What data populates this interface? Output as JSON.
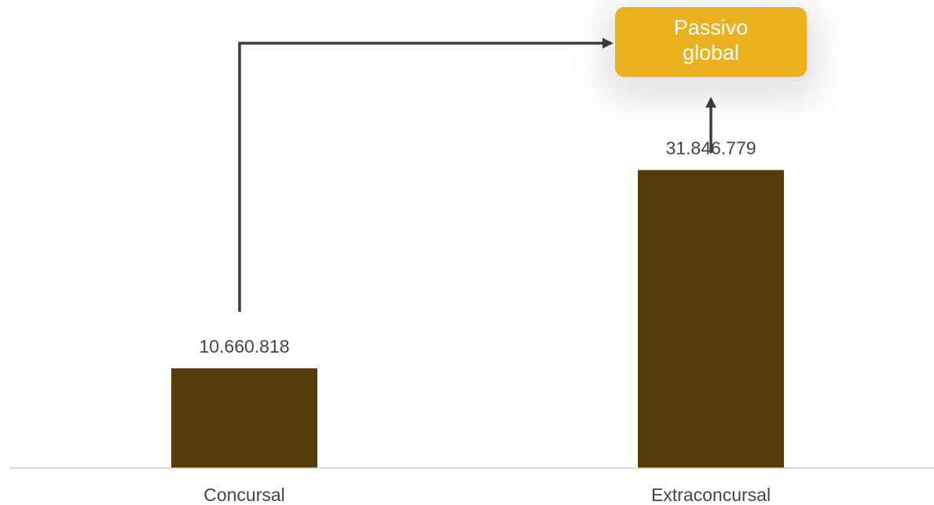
{
  "chart_data": {
    "type": "bar",
    "categories": [
      "Concursal",
      "Extraconcursal"
    ],
    "values": [
      10660818,
      31846779
    ],
    "value_labels": [
      "10.660.818",
      "31.846.779"
    ],
    "title": "",
    "xlabel": "",
    "ylabel": "",
    "ylim": [
      0,
      48000000
    ],
    "grid": false,
    "colors": {
      "bar": "#553d0a",
      "axis": "#cccccc",
      "arrow": "#3d3d3d",
      "box": "#ebb11e"
    }
  },
  "callout": {
    "line1": "Passivo",
    "line2": "global"
  }
}
